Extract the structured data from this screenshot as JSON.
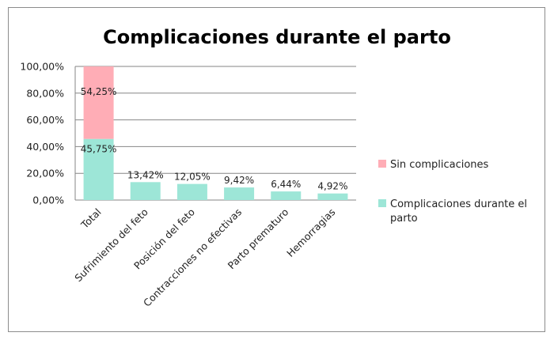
{
  "chart_data": {
    "type": "bar",
    "stacked": true,
    "title": "Complicaciones durante el parto",
    "xlabel": "",
    "ylabel": "",
    "ylim": [
      0,
      100
    ],
    "y_ticks": [
      "0,00%",
      "20,00%",
      "40,00%",
      "60,00%",
      "80,00%",
      "100,00%"
    ],
    "grid": true,
    "legend_position": "right",
    "categories": [
      "Total",
      "Sufrimiento del feto",
      "Posición del feto",
      "Contracciones no efectivas",
      "Parto prematuro",
      "Hemorragias"
    ],
    "series": [
      {
        "name": "Complicaciones durante el parto",
        "color": "#9de6d7",
        "values": [
          45.75,
          13.42,
          12.05,
          9.42,
          6.44,
          4.92
        ],
        "labels": [
          "45,75%",
          "13,42%",
          "12,05%",
          "9,42%",
          "6,44%",
          "4,92%"
        ]
      },
      {
        "name": "Sin complicaciones",
        "color": "#ffadb6",
        "values": [
          54.25,
          null,
          null,
          null,
          null,
          null
        ],
        "labels": [
          "54,25%",
          null,
          null,
          null,
          null,
          null
        ]
      }
    ],
    "legend": [
      {
        "line1": "Sin complicaciones",
        "line2": ""
      },
      {
        "line1": "Complicaciones durante el",
        "line2": "parto"
      }
    ]
  }
}
